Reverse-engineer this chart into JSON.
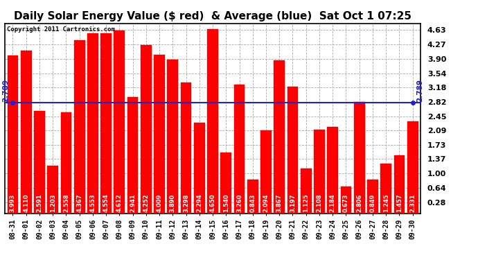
{
  "title": "Daily Solar Energy Value ($ red)  & Average (blue)  Sat Oct 1 07:25",
  "copyright": "Copyright 2011 Cartronics.com",
  "categories": [
    "08-31",
    "09-01",
    "09-02",
    "09-03",
    "09-04",
    "09-05",
    "09-06",
    "09-07",
    "09-08",
    "09-09",
    "09-10",
    "09-11",
    "09-12",
    "09-13",
    "09-14",
    "09-15",
    "09-16",
    "09-17",
    "09-18",
    "09-19",
    "09-20",
    "09-21",
    "09-22",
    "09-23",
    "09-24",
    "09-25",
    "09-26",
    "09-27",
    "09-28",
    "09-29",
    "09-30"
  ],
  "values": [
    3.993,
    4.11,
    2.591,
    1.203,
    2.558,
    4.367,
    4.553,
    4.554,
    4.612,
    2.941,
    4.252,
    4.009,
    3.89,
    3.298,
    2.294,
    4.65,
    1.54,
    3.26,
    0.843,
    2.094,
    3.867,
    3.197,
    1.125,
    2.108,
    2.184,
    0.673,
    2.806,
    0.849,
    1.245,
    1.457,
    2.331
  ],
  "average": 2.789,
  "bar_color": "#ff0000",
  "avg_line_color": "#2222cc",
  "background_color": "#ffffff",
  "plot_bg_color": "#ffffff",
  "grid_color": "#aaaaaa",
  "yticks": [
    0.28,
    0.64,
    1.0,
    1.37,
    1.73,
    2.09,
    2.45,
    2.82,
    3.18,
    3.54,
    3.9,
    4.27,
    4.63
  ],
  "ylim": [
    0.0,
    4.8
  ],
  "title_fontsize": 11,
  "tick_fontsize": 7,
  "bar_label_fontsize": 6,
  "avg_label": "2.789",
  "avg_label_fontsize": 7.5
}
